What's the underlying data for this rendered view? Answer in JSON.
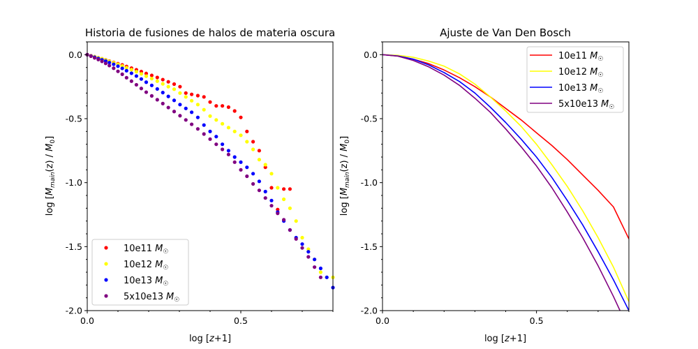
{
  "chart_data": [
    {
      "type": "scatter",
      "title": "Historia de fusiones de halos de materia oscura",
      "xlabel": "log [z+1]",
      "ylabel": "log [M_main(z) / M_0]",
      "xlim": [
        0.0,
        0.8
      ],
      "ylim": [
        -2.0,
        0.1
      ],
      "xticks": [
        0.0,
        0.5
      ],
      "xtick_labels": [
        "0.0",
        "0.5"
      ],
      "yticks": [
        0.0,
        -0.5,
        -1.0,
        -1.5,
        -2.0
      ],
      "ytick_labels": [
        "0.0",
        "-0.5",
        "-1.0",
        "-1.5",
        "-2.0"
      ],
      "legend_position": "lower-left",
      "series": [
        {
          "name": "10e11 M☉",
          "label": "10e11",
          "color": "#ff0000",
          "x": [
            0.0,
            0.012,
            0.024,
            0.036,
            0.048,
            0.06,
            0.072,
            0.086,
            0.1,
            0.114,
            0.128,
            0.144,
            0.16,
            0.176,
            0.192,
            0.21,
            0.228,
            0.246,
            0.264,
            0.283,
            0.302,
            0.321,
            0.34,
            0.36,
            0.38,
            0.4,
            0.42,
            0.44,
            0.46,
            0.48,
            0.5,
            0.52,
            0.54,
            0.56,
            0.58,
            0.6,
            0.62,
            0.64,
            0.66
          ],
          "y": [
            0.0,
            -0.008,
            -0.016,
            -0.024,
            -0.032,
            -0.04,
            -0.05,
            -0.06,
            -0.07,
            -0.08,
            -0.092,
            -0.105,
            -0.118,
            -0.132,
            -0.147,
            -0.162,
            -0.178,
            -0.195,
            -0.212,
            -0.23,
            -0.25,
            -0.3,
            -0.31,
            -0.32,
            -0.33,
            -0.37,
            -0.4,
            -0.4,
            -0.41,
            -0.44,
            -0.49,
            -0.6,
            -0.68,
            -0.75,
            -0.88,
            -1.04,
            -1.21,
            -1.05,
            -1.05
          ]
        },
        {
          "name": "10e12 M☉",
          "label": "10e12",
          "color": "#ffff00",
          "x": [
            0.0,
            0.012,
            0.024,
            0.036,
            0.048,
            0.06,
            0.072,
            0.086,
            0.1,
            0.114,
            0.128,
            0.144,
            0.16,
            0.176,
            0.192,
            0.21,
            0.228,
            0.246,
            0.264,
            0.283,
            0.302,
            0.321,
            0.34,
            0.36,
            0.38,
            0.4,
            0.42,
            0.44,
            0.46,
            0.48,
            0.5,
            0.52,
            0.54,
            0.56,
            0.58,
            0.6,
            0.62,
            0.64,
            0.66,
            0.68,
            0.7,
            0.72,
            0.74,
            0.76,
            0.78,
            0.8
          ],
          "y": [
            0.0,
            -0.008,
            -0.016,
            -0.024,
            -0.032,
            -0.042,
            -0.052,
            -0.063,
            -0.075,
            -0.088,
            -0.102,
            -0.117,
            -0.133,
            -0.15,
            -0.168,
            -0.187,
            -0.207,
            -0.228,
            -0.25,
            -0.27,
            -0.3,
            -0.33,
            -0.36,
            -0.39,
            -0.43,
            -0.48,
            -0.51,
            -0.54,
            -0.57,
            -0.6,
            -0.63,
            -0.68,
            -0.74,
            -0.82,
            -0.86,
            -0.93,
            -1.04,
            -1.13,
            -1.2,
            -1.3,
            -1.43,
            -1.52,
            -1.6,
            -1.7,
            -1.74,
            -1.74
          ]
        },
        {
          "name": "10e13 M☉",
          "label": "10e13",
          "color": "#0000ff",
          "x": [
            0.0,
            0.012,
            0.024,
            0.036,
            0.048,
            0.06,
            0.072,
            0.086,
            0.1,
            0.114,
            0.128,
            0.144,
            0.16,
            0.176,
            0.192,
            0.21,
            0.228,
            0.246,
            0.264,
            0.283,
            0.302,
            0.321,
            0.34,
            0.36,
            0.38,
            0.4,
            0.42,
            0.44,
            0.46,
            0.48,
            0.5,
            0.52,
            0.54,
            0.56,
            0.58,
            0.6,
            0.62,
            0.64,
            0.66,
            0.68,
            0.7,
            0.72,
            0.74,
            0.76,
            0.78,
            0.8
          ],
          "y": [
            0.0,
            -0.01,
            -0.02,
            -0.03,
            -0.04,
            -0.05,
            -0.062,
            -0.075,
            -0.09,
            -0.107,
            -0.125,
            -0.145,
            -0.167,
            -0.19,
            -0.215,
            -0.24,
            -0.268,
            -0.296,
            -0.326,
            -0.357,
            -0.39,
            -0.42,
            -0.45,
            -0.49,
            -0.55,
            -0.6,
            -0.64,
            -0.7,
            -0.75,
            -0.8,
            -0.84,
            -0.88,
            -0.93,
            -0.99,
            -1.07,
            -1.14,
            -1.23,
            -1.3,
            -1.37,
            -1.43,
            -1.48,
            -1.54,
            -1.6,
            -1.67,
            -1.74,
            -1.82
          ]
        },
        {
          "name": "5x10e13 M☉",
          "label": "5x10e13",
          "color": "#800080",
          "x": [
            0.0,
            0.012,
            0.024,
            0.036,
            0.048,
            0.06,
            0.072,
            0.086,
            0.1,
            0.114,
            0.128,
            0.144,
            0.16,
            0.176,
            0.192,
            0.21,
            0.228,
            0.246,
            0.264,
            0.283,
            0.302,
            0.321,
            0.34,
            0.36,
            0.38,
            0.4,
            0.42,
            0.44,
            0.46,
            0.48,
            0.5,
            0.52,
            0.54,
            0.56,
            0.58,
            0.6,
            0.62,
            0.64,
            0.66,
            0.68,
            0.7,
            0.72,
            0.74,
            0.76
          ],
          "y": [
            0.0,
            -0.012,
            -0.025,
            -0.038,
            -0.052,
            -0.068,
            -0.085,
            -0.106,
            -0.13,
            -0.153,
            -0.18,
            -0.207,
            -0.235,
            -0.264,
            -0.293,
            -0.322,
            -0.352,
            -0.382,
            -0.413,
            -0.444,
            -0.477,
            -0.51,
            -0.544,
            -0.58,
            -0.62,
            -0.66,
            -0.7,
            -0.74,
            -0.78,
            -0.84,
            -0.9,
            -0.95,
            -1.01,
            -1.06,
            -1.12,
            -1.18,
            -1.24,
            -1.29,
            -1.37,
            -1.44,
            -1.51,
            -1.58,
            -1.66,
            -1.74
          ]
        }
      ]
    },
    {
      "type": "line",
      "title": "Ajuste de Van Den Bosch",
      "xlabel": "log [z+1]",
      "ylabel": "log [M_main(z) / M_0]",
      "xlim": [
        0.0,
        0.8
      ],
      "ylim": [
        -2.0,
        0.1
      ],
      "xticks": [
        0.0,
        0.5
      ],
      "xtick_labels": [
        "0.0",
        "0.5"
      ],
      "yticks": [
        0.0,
        -0.5,
        -1.0,
        -1.5,
        -2.0
      ],
      "ytick_labels": [
        "0.0",
        "-0.5",
        "-1.0",
        "-1.5",
        "-2.0"
      ],
      "legend_position": "upper-right",
      "x": [
        0.0,
        0.05,
        0.1,
        0.15,
        0.2,
        0.25,
        0.3,
        0.35,
        0.4,
        0.45,
        0.5,
        0.55,
        0.6,
        0.65,
        0.7,
        0.75,
        0.8
      ],
      "series": [
        {
          "name": "10e11 M☉",
          "label": "10e11",
          "color": "#ff0000",
          "y": [
            0.0,
            -0.01,
            -0.035,
            -0.07,
            -0.12,
            -0.18,
            -0.25,
            -0.33,
            -0.42,
            -0.51,
            -0.61,
            -0.71,
            -0.82,
            -0.94,
            -1.06,
            -1.19,
            -1.44
          ]
        },
        {
          "name": "10e12 M☉",
          "label": "10e12",
          "color": "#ffff00",
          "y": [
            0.0,
            -0.005,
            -0.02,
            -0.05,
            -0.09,
            -0.15,
            -0.23,
            -0.33,
            -0.44,
            -0.56,
            -0.7,
            -0.86,
            -1.03,
            -1.22,
            -1.43,
            -1.66,
            -1.93
          ]
        },
        {
          "name": "10e13 M☉",
          "label": "10e13",
          "color": "#0000ff",
          "y": [
            0.0,
            -0.01,
            -0.035,
            -0.08,
            -0.14,
            -0.21,
            -0.3,
            -0.41,
            -0.53,
            -0.66,
            -0.8,
            -0.96,
            -1.14,
            -1.33,
            -1.54,
            -1.76,
            -2.0
          ]
        },
        {
          "name": "5x10e13 M☉",
          "label": "5x10e13",
          "color": "#800080",
          "y": [
            0.0,
            -0.012,
            -0.045,
            -0.095,
            -0.16,
            -0.24,
            -0.34,
            -0.45,
            -0.58,
            -0.72,
            -0.87,
            -1.04,
            -1.23,
            -1.43,
            -1.65,
            -1.89,
            -2.15
          ]
        }
      ]
    }
  ]
}
